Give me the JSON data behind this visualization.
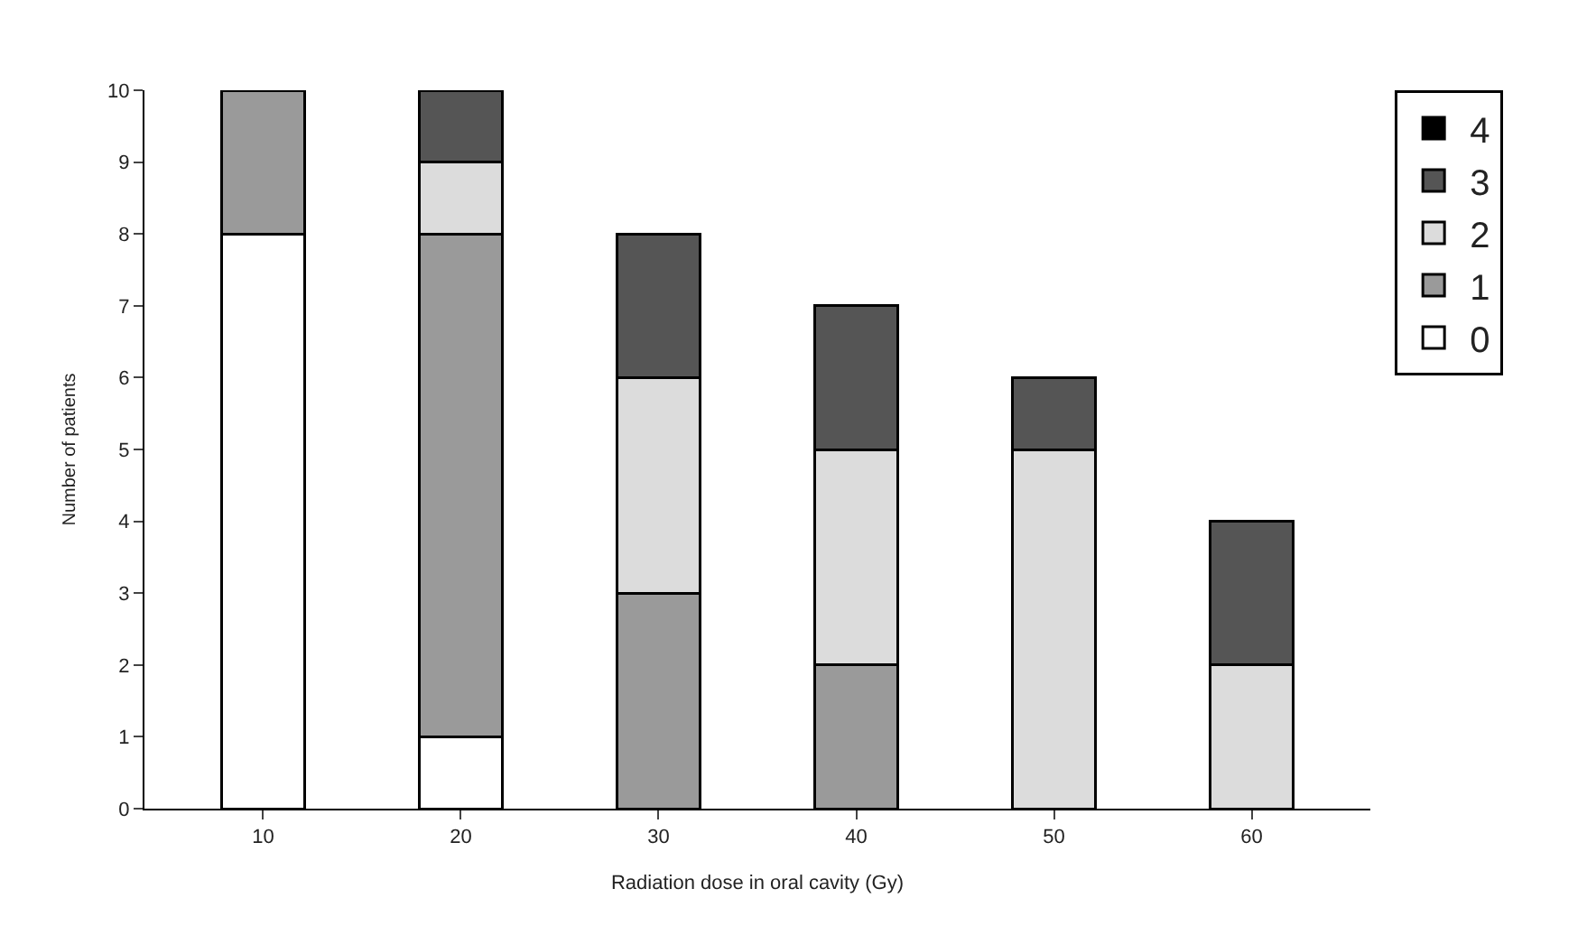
{
  "chart_data": {
    "type": "bar",
    "stacked": true,
    "xlabel": "Radiation dose in oral cavity (Gy)",
    "ylabel": "Number of patients",
    "categories": [
      "10",
      "20",
      "30",
      "40",
      "50",
      "60"
    ],
    "series": [
      {
        "name": "0",
        "color": "#ffffff",
        "values": [
          8,
          1,
          0,
          0,
          0,
          0
        ]
      },
      {
        "name": "1",
        "color": "#9a9a9a",
        "values": [
          2,
          7,
          3,
          2,
          0,
          0
        ]
      },
      {
        "name": "2",
        "color": "#dcdcdc",
        "values": [
          0,
          1,
          3,
          3,
          5,
          2
        ]
      },
      {
        "name": "3",
        "color": "#555555",
        "values": [
          0,
          1,
          2,
          2,
          1,
          2
        ]
      },
      {
        "name": "4",
        "color": "#000000",
        "values": [
          0,
          0,
          0,
          0,
          0,
          0
        ]
      }
    ],
    "ylim": [
      0,
      10
    ],
    "yticks": [
      0,
      1,
      2,
      3,
      4,
      5,
      6,
      7,
      8,
      9,
      10
    ],
    "legend": "top right"
  }
}
